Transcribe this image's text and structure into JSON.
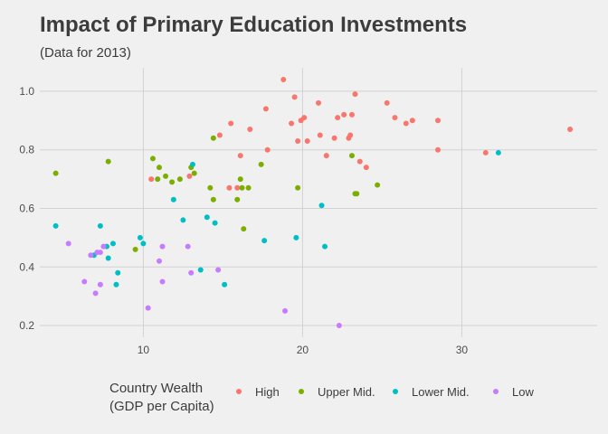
{
  "chart_data": {
    "type": "scatter",
    "title": "Impact of Primary Education Investments",
    "subtitle": "(Data for 2013)",
    "xlabel": "",
    "ylabel": "",
    "xlim": [
      3.5,
      38.5
    ],
    "ylim": [
      0.16,
      1.08
    ],
    "x_ticks": [
      10,
      20,
      30
    ],
    "y_ticks": [
      0.2,
      0.4,
      0.6,
      0.8,
      1.0
    ],
    "x_tick_labels": [
      "10",
      "20",
      "30"
    ],
    "y_tick_labels": [
      "0.2",
      "0.4",
      "0.6",
      "0.8",
      "1.0"
    ],
    "grid": true,
    "legend": {
      "position": "bottom",
      "title_line1": "Country Wealth",
      "title_line2": "(GDP per Capita)"
    },
    "series": [
      {
        "name": "High",
        "color": "#f8766d",
        "points": [
          [
            18.8,
            1.04
          ],
          [
            19.5,
            0.98
          ],
          [
            21.0,
            0.96
          ],
          [
            23.3,
            0.99
          ],
          [
            25.3,
            0.96
          ],
          [
            17.7,
            0.94
          ],
          [
            19.3,
            0.89
          ],
          [
            19.9,
            0.9
          ],
          [
            20.1,
            0.91
          ],
          [
            22.6,
            0.92
          ],
          [
            23.1,
            0.92
          ],
          [
            22.2,
            0.91
          ],
          [
            15.5,
            0.89
          ],
          [
            25.8,
            0.91
          ],
          [
            26.5,
            0.89
          ],
          [
            26.9,
            0.9
          ],
          [
            28.5,
            0.9
          ],
          [
            14.8,
            0.85
          ],
          [
            16.7,
            0.87
          ],
          [
            19.7,
            0.83
          ],
          [
            20.3,
            0.83
          ],
          [
            21.1,
            0.85
          ],
          [
            22.0,
            0.84
          ],
          [
            22.9,
            0.84
          ],
          [
            23.0,
            0.85
          ],
          [
            17.8,
            0.8
          ],
          [
            28.5,
            0.8
          ],
          [
            16.1,
            0.78
          ],
          [
            21.5,
            0.78
          ],
          [
            23.6,
            0.76
          ],
          [
            24.0,
            0.74
          ],
          [
            31.5,
            0.79
          ],
          [
            36.8,
            0.87
          ],
          [
            10.5,
            0.7
          ],
          [
            12.9,
            0.71
          ],
          [
            15.4,
            0.67
          ],
          [
            15.9,
            0.67
          ]
        ]
      },
      {
        "name": "Upper Mid.",
        "color": "#7cae00",
        "points": [
          [
            4.5,
            0.72
          ],
          [
            7.8,
            0.76
          ],
          [
            10.6,
            0.77
          ],
          [
            11.0,
            0.74
          ],
          [
            10.9,
            0.7
          ],
          [
            11.4,
            0.71
          ],
          [
            11.8,
            0.69
          ],
          [
            12.3,
            0.7
          ],
          [
            13.2,
            0.72
          ],
          [
            13.0,
            0.74
          ],
          [
            14.4,
            0.84
          ],
          [
            14.2,
            0.67
          ],
          [
            14.4,
            0.63
          ],
          [
            16.1,
            0.7
          ],
          [
            16.2,
            0.67
          ],
          [
            16.6,
            0.67
          ],
          [
            15.9,
            0.63
          ],
          [
            16.3,
            0.53
          ],
          [
            17.4,
            0.75
          ],
          [
            19.7,
            0.67
          ],
          [
            23.1,
            0.78
          ],
          [
            23.3,
            0.65
          ],
          [
            23.4,
            0.65
          ],
          [
            24.7,
            0.68
          ],
          [
            9.5,
            0.46
          ]
        ]
      },
      {
        "name": "Lower Mid.",
        "color": "#00bfc4",
        "points": [
          [
            4.5,
            0.54
          ],
          [
            7.3,
            0.54
          ],
          [
            8.1,
            0.48
          ],
          [
            7.7,
            0.47
          ],
          [
            7.8,
            0.43
          ],
          [
            6.9,
            0.44
          ],
          [
            8.4,
            0.38
          ],
          [
            8.3,
            0.34
          ],
          [
            9.8,
            0.5
          ],
          [
            10.0,
            0.48
          ],
          [
            11.9,
            0.63
          ],
          [
            12.5,
            0.56
          ],
          [
            13.1,
            0.75
          ],
          [
            14.0,
            0.57
          ],
          [
            14.5,
            0.55
          ],
          [
            13.6,
            0.39
          ],
          [
            15.1,
            0.34
          ],
          [
            17.6,
            0.49
          ],
          [
            19.6,
            0.5
          ],
          [
            21.2,
            0.61
          ],
          [
            21.4,
            0.47
          ],
          [
            32.3,
            0.79
          ]
        ]
      },
      {
        "name": "Low",
        "color": "#c77cff",
        "points": [
          [
            5.3,
            0.48
          ],
          [
            6.3,
            0.35
          ],
          [
            6.7,
            0.44
          ],
          [
            7.1,
            0.45
          ],
          [
            7.3,
            0.45
          ],
          [
            7.5,
            0.47
          ],
          [
            7.0,
            0.31
          ],
          [
            7.3,
            0.34
          ],
          [
            11.2,
            0.47
          ],
          [
            11.0,
            0.42
          ],
          [
            11.2,
            0.35
          ],
          [
            12.8,
            0.47
          ],
          [
            13.0,
            0.38
          ],
          [
            14.7,
            0.39
          ],
          [
            10.3,
            0.26
          ],
          [
            18.9,
            0.25
          ],
          [
            22.3,
            0.2
          ]
        ]
      }
    ]
  }
}
